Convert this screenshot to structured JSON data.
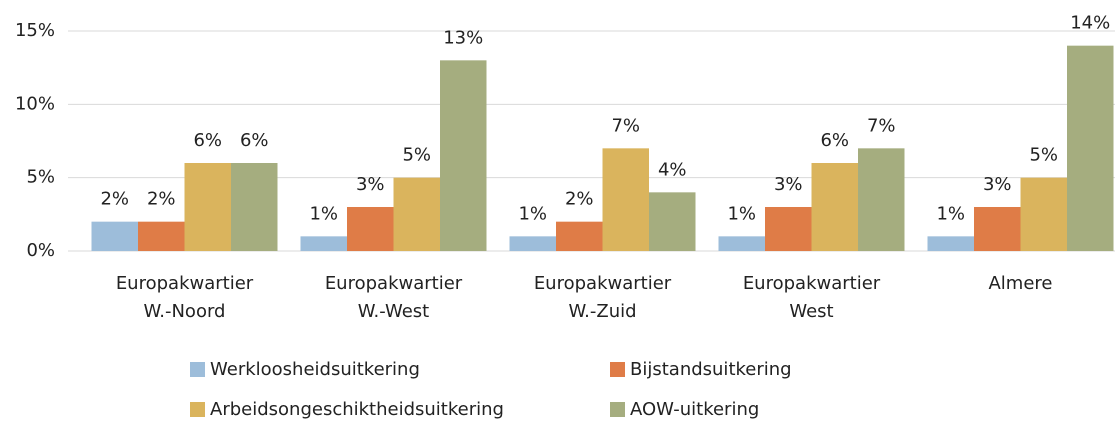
{
  "chart_data": {
    "type": "bar",
    "categories": [
      [
        "Europakwartier",
        "W.-Noord"
      ],
      [
        "Europakwartier",
        "W.-West"
      ],
      [
        "Europakwartier",
        "W.-Zuid"
      ],
      [
        "Europakwartier",
        "West"
      ],
      [
        "Almere"
      ]
    ],
    "series": [
      {
        "name": "Werkloosheidsuitkering",
        "color": "#9dbdda",
        "values": [
          2,
          1,
          1,
          1,
          1
        ],
        "value_labels": [
          "2%",
          "1%",
          "1%",
          "1%",
          "1%"
        ]
      },
      {
        "name": "Bijstandsuitkering",
        "color": "#df7c47",
        "values": [
          2,
          3,
          2,
          3,
          3
        ],
        "value_labels": [
          "2%",
          "3%",
          "2%",
          "3%",
          "3%"
        ]
      },
      {
        "name": "Arbeidsongeschiktheidsuitkering",
        "color": "#dab45d",
        "values": [
          6,
          5,
          7,
          6,
          5
        ],
        "value_labels": [
          "6%",
          "5%",
          "7%",
          "6%",
          "5%"
        ]
      },
      {
        "name": "AOW-uitkering",
        "color": "#a5ad7f",
        "values": [
          6,
          13,
          4,
          7,
          14
        ],
        "value_labels": [
          "6%",
          "13%",
          "4%",
          "7%",
          "14%"
        ]
      }
    ],
    "ylim": [
      0,
      15
    ],
    "yticks": [
      {
        "value": 0,
        "label": "0%"
      },
      {
        "value": 5,
        "label": "5%"
      },
      {
        "value": 10,
        "label": "10%"
      },
      {
        "value": 15,
        "label": "15%"
      }
    ],
    "grid": true
  }
}
